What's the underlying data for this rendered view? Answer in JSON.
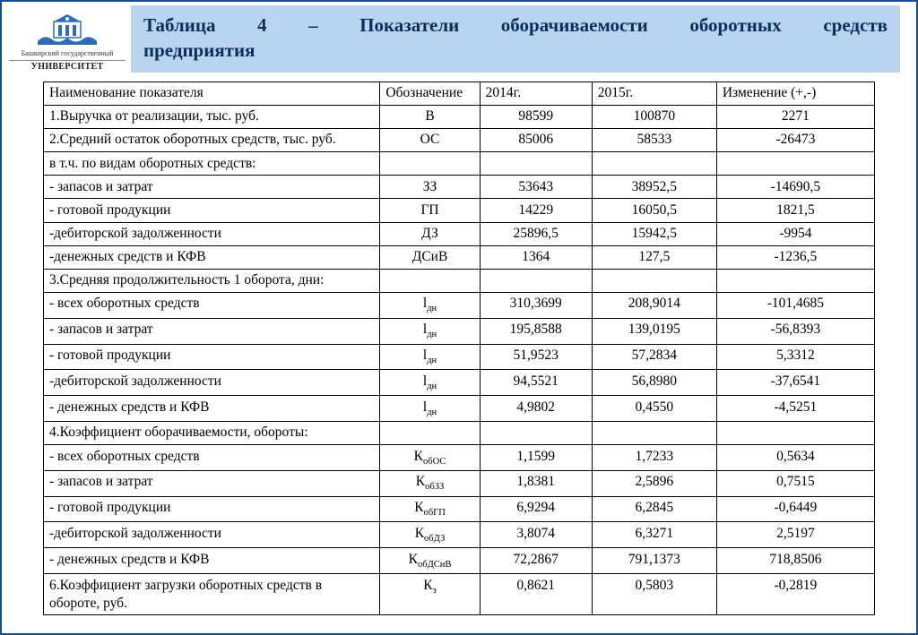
{
  "logo": {
    "caption_small": "Башкирский государственный",
    "caption_main": "УНИВЕРСИТЕТ"
  },
  "title": {
    "w1": "Таблица",
    "w2": "4",
    "w3": "–",
    "w4": "Показатели",
    "w5": "оборачиваемости",
    "w6": "оборотных",
    "w7": "средств",
    "line2": "предприятия"
  },
  "table": {
    "headers": {
      "name": "Наименование показателя",
      "symbol": "Обозначение",
      "y2014": "2014г.",
      "y2015": "2015г.",
      "change": "Изменение (+,-)"
    },
    "rows": [
      {
        "name": "1.Выручка от реализации, тыс. руб.",
        "sym": "В",
        "y1": "98599",
        "y2": "100870",
        "chg": "2271"
      },
      {
        "name": "2.Средний остаток оборотных средств, тыс. руб.",
        "sym": "ОС",
        "y1": "85006",
        "y2": "58533",
        "chg": "-26473"
      },
      {
        "name": "в т.ч. по видам оборотных средств:",
        "sym": "",
        "y1": "",
        "y2": "",
        "chg": ""
      },
      {
        "name": "- запасов и затрат",
        "sym": "ЗЗ",
        "y1": "53643",
        "y2": "38952,5",
        "chg": "-14690,5"
      },
      {
        "name": "- готовой продукции",
        "sym": "ГП",
        "y1": "14229",
        "y2": "16050,5",
        "chg": "1821,5"
      },
      {
        "name": "-дебиторской задолженности",
        "sym": "ДЗ",
        "y1": "25896,5",
        "y2": "15942,5",
        "chg": "-9954"
      },
      {
        "name": "-денежных средств и КФВ",
        "sym": "ДСиВ",
        "y1": "1364",
        "y2": "127,5",
        "chg": "-1236,5"
      },
      {
        "name": "3.Средняя продолжительность 1 оборота, дни:",
        "sym": "",
        "y1": "",
        "y2": "",
        "chg": ""
      },
      {
        "name": "- всех оборотных средств",
        "sym_html": "l<sub>дн</sub>",
        "y1": "310,3699",
        "y2": "208,9014",
        "chg": "-101,4685"
      },
      {
        "name": "- запасов и затрат",
        "sym_html": "l<sub>дн</sub>",
        "y1": "195,8588",
        "y2": "139,0195",
        "chg": "-56,8393"
      },
      {
        "name": "- готовой продукции",
        "sym_html": "l<sub>дн</sub>",
        "y1": "51,9523",
        "y2": "57,2834",
        "chg": "5,3312"
      },
      {
        "name": "-дебиторской задолженности",
        "sym_html": "l<sub>дн</sub>",
        "y1": "94,5521",
        "y2": "56,8980",
        "chg": "-37,6541"
      },
      {
        "name": "- денежных средств и КФВ",
        "sym_html": "l<sub>дн</sub>",
        "y1": "4,9802",
        "y2": "0,4550",
        "chg": "-4,5251"
      },
      {
        "name": "4.Коэффициент оборачиваемости, обороты:",
        "sym": "",
        "y1": "",
        "y2": "",
        "chg": ""
      },
      {
        "name": "- всех оборотных средств",
        "sym_html": "К<sub>обОС</sub>",
        "y1": "1,1599",
        "y2": "1,7233",
        "chg": "0,5634"
      },
      {
        "name": "- запасов и затрат",
        "sym_html": "К<sub>обЗЗ</sub>",
        "y1": "1,8381",
        "y2": "2,5896",
        "chg": "0,7515"
      },
      {
        "name": "- готовой продукции",
        "sym_html": "К<sub>обГП</sub>",
        "y1": "6,9294",
        "y2": "6,2845",
        "chg": "-0,6449"
      },
      {
        "name": "-дебиторской задолженности",
        "sym_html": "К<sub>обДЗ</sub>",
        "y1": "3,8074",
        "y2": "6,3271",
        "chg": "2,5197"
      },
      {
        "name": "- денежных средств и КФВ",
        "sym_html": "К<sub>обДСиВ</sub>",
        "y1": "72,2867",
        "y2": "791,1373",
        "chg": "718,8506"
      },
      {
        "name": "6.Коэффициент загрузки оборотных средств в обороте, руб.",
        "sym_html": "К<sub>з</sub>",
        "y1": "0,8621",
        "y2": "0,5803",
        "chg": "-0,2819"
      }
    ]
  },
  "style": {
    "border_color": "#1a4d8f",
    "title_bg": "#b9d4ef",
    "title_color": "#0b2e59",
    "table_border": "#000000",
    "title_fontsize": 21,
    "table_fontsize": 15.5
  }
}
